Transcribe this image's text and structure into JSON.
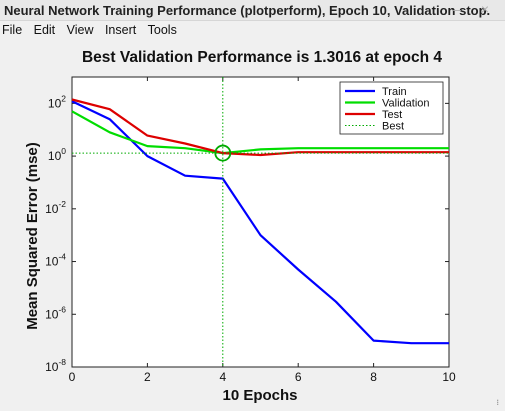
{
  "window": {
    "title": "Neural Network Training Performance (plotperform), Epoch 10, Validation stop.",
    "controls": [
      "minimize-icon",
      "close-icon"
    ],
    "minimize_glyph": "–",
    "close_glyph": "×"
  },
  "menu": {
    "items": [
      "File",
      "Edit",
      "View",
      "Insert",
      "Tools"
    ]
  },
  "chart_data": {
    "type": "line",
    "title": "Best Validation Performance is 1.3016 at epoch 4",
    "xlabel": "10 Epochs",
    "ylabel": "Mean Squared Error  (mse)",
    "xlim": [
      0,
      10
    ],
    "ylim": [
      1e-08,
      1000
    ],
    "yscale": "log",
    "x_ticks": [
      "0",
      "2",
      "4",
      "6",
      "8",
      "10"
    ],
    "y_ticks": [
      {
        "base": "10",
        "exp": "-8"
      },
      {
        "base": "10",
        "exp": "-6"
      },
      {
        "base": "10",
        "exp": "-4"
      },
      {
        "base": "10",
        "exp": "-2"
      },
      {
        "base": "10",
        "exp": "0"
      },
      {
        "base": "10",
        "exp": "2"
      }
    ],
    "legend_position": "top-right",
    "grid": false,
    "x": [
      0,
      1,
      2,
      3,
      4,
      5,
      6,
      7,
      8,
      9,
      10
    ],
    "series": [
      {
        "name": "Train",
        "color": "#0000ff",
        "values": [
          120,
          25,
          1.0,
          0.18,
          0.14,
          0.001,
          5e-05,
          3e-06,
          1e-07,
          8e-08,
          8e-08
        ]
      },
      {
        "name": "Validation",
        "color": "#00dd00",
        "values": [
          50,
          8,
          2.4,
          2.0,
          1.3016,
          1.8,
          2.0,
          2.0,
          2.0,
          2.0,
          2.0
        ]
      },
      {
        "name": "Test",
        "color": "#dd0000",
        "values": [
          140,
          60,
          6,
          3,
          1.3,
          1.1,
          1.4,
          1.4,
          1.4,
          1.4,
          1.4
        ]
      }
    ],
    "best": {
      "name": "Best",
      "epoch": 4,
      "value": 1.3016,
      "color": "#00aa00",
      "marker": "circle"
    }
  }
}
